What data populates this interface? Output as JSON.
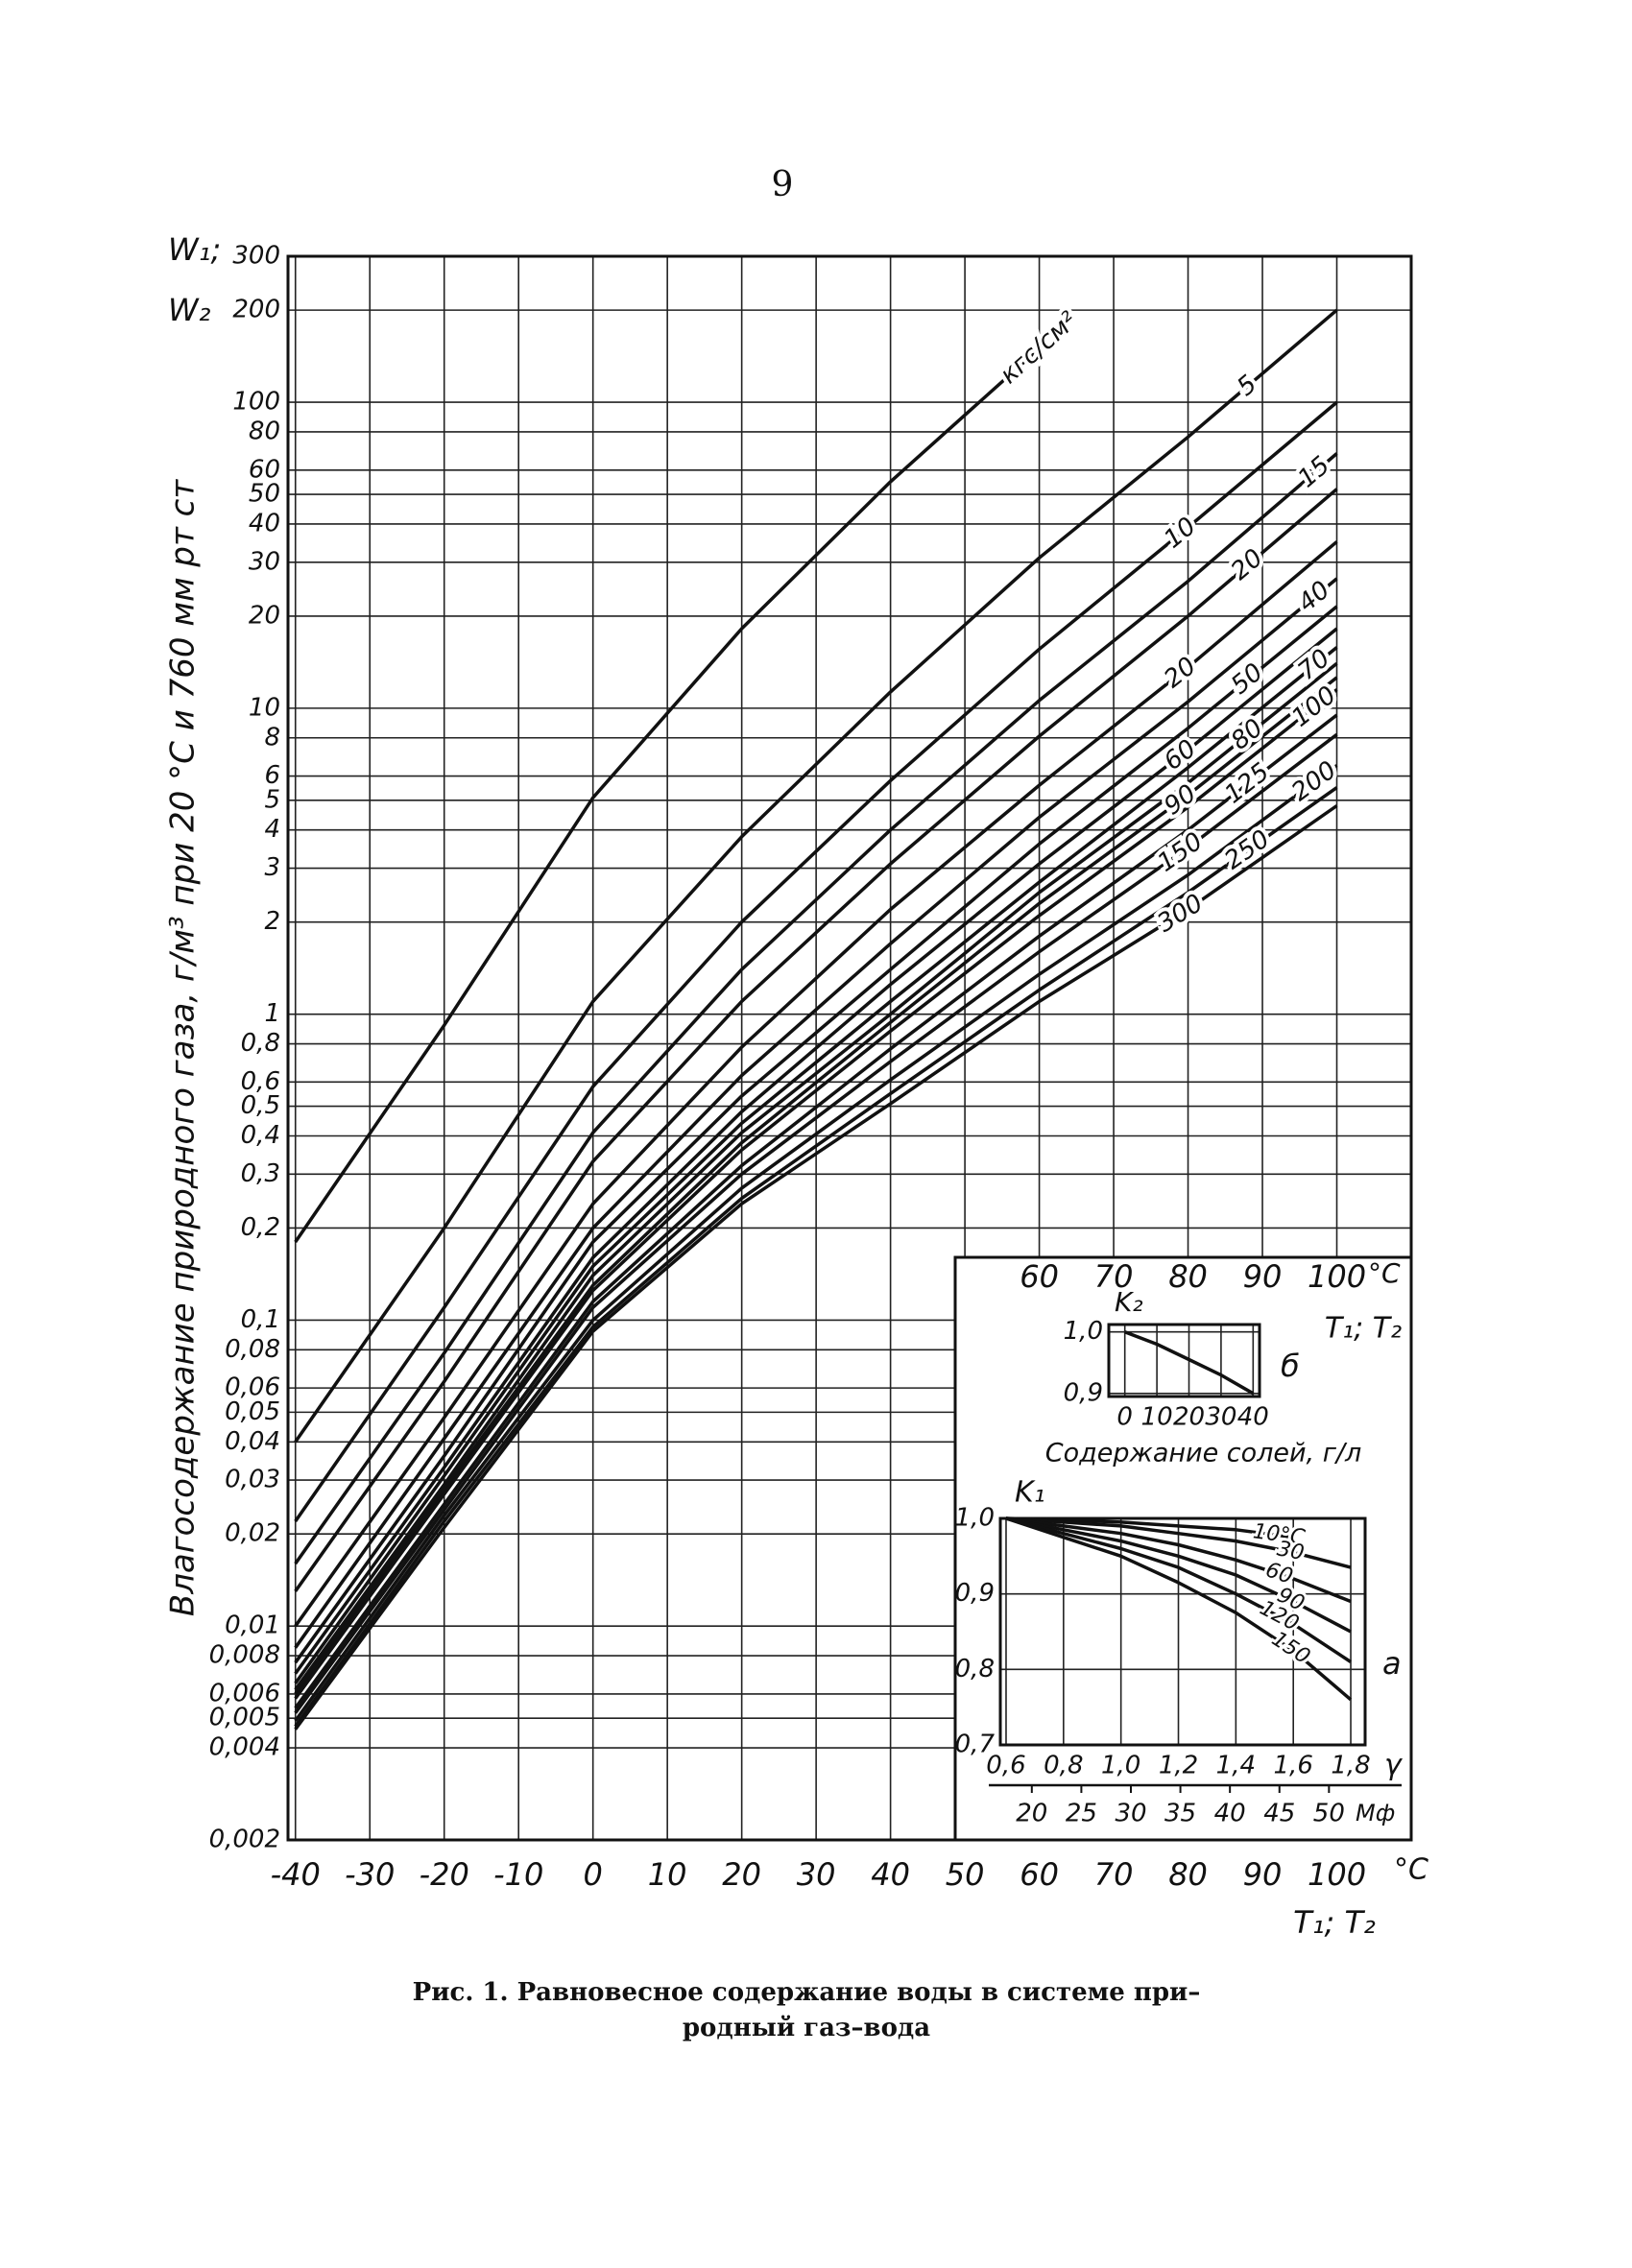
{
  "page_number": "9",
  "chart_data": [
    {
      "type": "line",
      "y_label": "Влагосодержание природного газа, г/м³ при 20 °C и 760 мм рт ст",
      "y_label_top": "W₁;",
      "y_label_bottom": "W₂",
      "x_unit": "°C",
      "x_label": "T₁; T₂",
      "log_y": true,
      "grid": true,
      "color": "#111111",
      "xlim": [
        -41,
        110
      ],
      "xticks": [
        -40,
        -30,
        -20,
        -10,
        0,
        10,
        20,
        30,
        40,
        50,
        60,
        70,
        80,
        90,
        100
      ],
      "ylim": [
        0.002,
        300
      ],
      "yticks": [
        300,
        200,
        100,
        80,
        60,
        50,
        40,
        30,
        20,
        10,
        8,
        6,
        5,
        4,
        3,
        2,
        1,
        {
          "value": 0.8,
          "label": "0,8"
        },
        {
          "value": 0.6,
          "label": "0,6"
        },
        {
          "value": 0.5,
          "label": "0,5"
        },
        {
          "value": 0.4,
          "label": "0,4"
        },
        {
          "value": 0.3,
          "label": "0,3"
        },
        {
          "value": 0.2,
          "label": "0,2"
        },
        {
          "value": 0.1,
          "label": "0,1"
        },
        {
          "value": 0.08,
          "label": "0,08"
        },
        {
          "value": 0.06,
          "label": "0,06"
        },
        {
          "value": 0.05,
          "label": "0,05"
        },
        {
          "value": 0.04,
          "label": "0,04"
        },
        {
          "value": 0.03,
          "label": "0,03"
        },
        {
          "value": 0.02,
          "label": "0,02"
        },
        {
          "value": 0.01,
          "label": "0,01"
        },
        {
          "value": 0.008,
          "label": "0,008"
        },
        {
          "value": 0.006,
          "label": "0,006"
        },
        {
          "value": 0.005,
          "label": "0,005"
        },
        {
          "value": 0.004,
          "label": "0,004"
        },
        {
          "value": 0.002,
          "label": "0,002"
        }
      ],
      "x": [
        -40,
        -20,
        0,
        20,
        40,
        60,
        80,
        100
      ],
      "series": [
        {
          "name": "кгс/см²",
          "values": [
            0.18,
            0.92,
            5.1,
            18.2,
            55,
            150,
            null,
            null
          ]
        },
        {
          "name": "5",
          "values": [
            0.04,
            0.2,
            1.1,
            3.8,
            11.3,
            31,
            77,
            200
          ]
        },
        {
          "name": "10",
          "values": [
            0.022,
            0.11,
            0.58,
            2.0,
            5.8,
            15.6,
            39,
            100
          ]
        },
        {
          "name": "15",
          "values": [
            0.016,
            0.078,
            0.41,
            1.4,
            4.0,
            10.6,
            26,
            68
          ]
        },
        {
          "name": "20",
          "values": [
            0.013,
            0.063,
            0.33,
            1.1,
            3.1,
            8.1,
            20,
            52
          ]
        },
        {
          "name": "20",
          "values": [
            0.01,
            0.048,
            0.24,
            0.78,
            2.2,
            5.6,
            13.6,
            35
          ]
        },
        {
          "name": "40",
          "values": [
            0.0085,
            0.041,
            0.2,
            0.63,
            1.7,
            4.4,
            10.5,
            26.5
          ]
        },
        {
          "name": "50",
          "values": [
            0.0076,
            0.036,
            0.18,
            0.54,
            1.4,
            3.6,
            8.6,
            21.5
          ]
        },
        {
          "name": "60",
          "values": [
            0.007,
            0.033,
            0.16,
            0.48,
            1.25,
            3.1,
            7.3,
            18.2
          ]
        },
        {
          "name": "70",
          "values": [
            0.0065,
            0.031,
            0.15,
            0.44,
            1.1,
            2.7,
            6.4,
            15.8
          ]
        },
        {
          "name": "80",
          "values": [
            0.0062,
            0.029,
            0.14,
            0.41,
            1.0,
            2.5,
            5.7,
            14
          ]
        },
        {
          "name": "90",
          "values": [
            0.006,
            0.028,
            0.13,
            0.38,
            0.94,
            2.3,
            5.2,
            12.6
          ]
        },
        {
          "name": "100",
          "values": [
            0.0058,
            0.027,
            0.125,
            0.36,
            0.88,
            2.1,
            4.75,
            11.5
          ]
        },
        {
          "name": "125",
          "values": [
            0.0054,
            0.025,
            0.115,
            0.32,
            0.77,
            1.8,
            4.0,
            9.5
          ]
        },
        {
          "name": "150",
          "values": [
            0.0052,
            0.024,
            0.11,
            0.3,
            0.7,
            1.6,
            3.5,
            8.2
          ]
        },
        {
          "name": "200",
          "values": [
            0.0049,
            0.023,
            0.1,
            0.27,
            0.61,
            1.35,
            2.85,
            6.5
          ]
        },
        {
          "name": "250",
          "values": [
            0.0047,
            0.022,
            0.095,
            0.25,
            0.55,
            1.2,
            2.5,
            5.5
          ]
        },
        {
          "name": "300",
          "values": [
            0.0046,
            0.021,
            0.092,
            0.24,
            0.51,
            1.1,
            2.2,
            4.8
          ]
        }
      ]
    },
    {
      "type": "line",
      "panel_label": "а",
      "y_label": "K₁",
      "x_label": "γ",
      "x2_label": "Мф",
      "grid": true,
      "color": "#111111",
      "xlim": [
        0.58,
        1.85
      ],
      "xticks": [
        {
          "value": 0.6,
          "label": "0,6"
        },
        {
          "value": 0.8,
          "label": "0,8"
        },
        {
          "value": 1.0,
          "label": "1,0"
        },
        {
          "value": 1.2,
          "label": "1,2"
        },
        {
          "value": 1.4,
          "label": "1,4"
        },
        {
          "value": 1.6,
          "label": "1,6"
        },
        {
          "value": 1.8,
          "label": "1,8"
        }
      ],
      "x2lim": [
        16.82,
        53.65
      ],
      "x2ticks": [
        20,
        25,
        30,
        35,
        40,
        45,
        50
      ],
      "ylim": [
        0.7,
        1.0
      ],
      "yticks": [
        {
          "value": 1.0,
          "label": "1,0"
        },
        {
          "value": 0.9,
          "label": "0,9"
        },
        {
          "value": 0.8,
          "label": "0,8"
        },
        {
          "value": 0.7,
          "label": "0,7"
        }
      ],
      "x": [
        0.6,
        0.8,
        1.0,
        1.2,
        1.4,
        1.6,
        1.8
      ],
      "series": [
        {
          "name": "10°C",
          "values": [
            1.0,
            0.998,
            0.995,
            0.99,
            0.985,
            0.975,
            null
          ]
        },
        {
          "name": "30",
          "values": [
            1.0,
            0.995,
            0.99,
            0.98,
            0.97,
            0.955,
            0.935
          ]
        },
        {
          "name": "60",
          "values": [
            1.0,
            0.99,
            0.98,
            0.965,
            0.945,
            0.92,
            0.89
          ]
        },
        {
          "name": "90",
          "values": [
            1.0,
            0.985,
            0.97,
            0.95,
            0.925,
            0.89,
            0.85
          ]
        },
        {
          "name": "120",
          "values": [
            1.0,
            0.98,
            0.96,
            0.935,
            0.9,
            0.86,
            0.81
          ]
        },
        {
          "name": "150",
          "values": [
            1.0,
            0.975,
            0.95,
            0.915,
            0.875,
            0.825,
            0.76
          ]
        }
      ]
    },
    {
      "type": "line",
      "panel_label": "б",
      "y_label": "K₂",
      "x_label": "Содержание солей, г/л",
      "grid": true,
      "color": "#111111",
      "xlim": [
        -5,
        42
      ],
      "xticks": [
        0,
        10,
        20,
        30,
        40
      ],
      "ylim": [
        0.895,
        1.012
      ],
      "yticks": [
        {
          "value": 1.0,
          "label": "1,0"
        },
        {
          "value": 0.9,
          "label": "0,9"
        }
      ],
      "x": [
        0,
        10,
        20,
        30,
        40
      ],
      "series": [
        {
          "values": [
            1.0,
            0.98,
            0.955,
            0.93,
            0.9
          ]
        }
      ]
    }
  ],
  "caption": [
    "Рис. 1. Равновесное содержание воды в системе при–",
    "родный газ–вода"
  ]
}
